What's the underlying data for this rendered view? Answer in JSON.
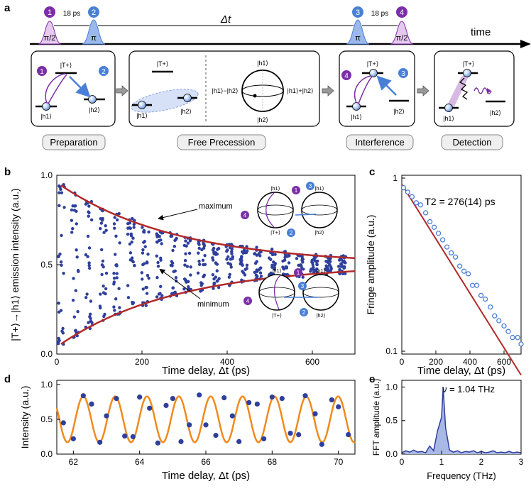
{
  "panel_a": {
    "label": "a",
    "time_label": "time",
    "delay_label": "Δt",
    "pulses": [
      {
        "num": "1",
        "name": "π/2"
      },
      {
        "num": "2",
        "name": "π"
      },
      {
        "num": "3",
        "name": "π"
      },
      {
        "num": "4",
        "name": "π/2"
      }
    ],
    "gap_label": "18 ps",
    "boxes": [
      "Preparation",
      "Free Precession",
      "Interference",
      "Detection"
    ],
    "state_T": "|T+⟩",
    "state_h1": "|h1⟩",
    "state_h2": "|h2⟩",
    "minus_label": "|h1⟩−|h2⟩",
    "plus_label": "|h1⟩+|h2⟩",
    "colors": {
      "purple": "#7b2fa6",
      "blue": "#4a7fd8",
      "red": "#b22a2a",
      "orange": "#f08a1c",
      "dots": "#2e3f9c"
    }
  },
  "panel_b": {
    "label": "b",
    "ylabel": "|T+⟩→|h1⟩ emission intensity (a.u.)",
    "xlabel": "Time delay, Δt (ps)",
    "maximum_label": "maximum",
    "minimum_label": "minimum",
    "bloch_nums": [
      "1",
      "2",
      "3",
      "4"
    ]
  },
  "panel_c": {
    "label": "c",
    "ylabel": "Fringe amplitude (a.u.)",
    "xlabel": "Time delay, Δt (ps)",
    "annotation": "T2 = 276(14) ps"
  },
  "panel_d": {
    "label": "d",
    "ylabel": "Intensity (a.u.)",
    "xlabel": "Time delay, Δt (ps)"
  },
  "panel_e": {
    "label": "e",
    "ylabel": "FFT amplitude (a.u.)",
    "xlabel": "Frequency (THz)",
    "annotation": "ν = 1.04 THz"
  },
  "chart_data": [
    {
      "type": "scatter",
      "panel": "b",
      "title": "",
      "xlabel": "Time delay, Δt (ps)",
      "ylabel": "|T+⟩→|h1⟩ emission intensity (a.u.)",
      "xlim": [
        0,
        700
      ],
      "ylim": [
        0,
        1
      ],
      "xticks": [
        0,
        200,
        400,
        600
      ],
      "yticks": [
        0.0,
        0.5,
        1.0
      ],
      "envelope": {
        "center": 0.5,
        "amplitude": 0.46,
        "T2": 276
      },
      "series": [
        {
          "name": "data",
          "sample_every_ps": 33,
          "points_per_group": 28
        }
      ]
    },
    {
      "type": "scatter",
      "panel": "c",
      "xlabel": "Time delay, Δt (ps)",
      "ylabel": "Fringe amplitude (a.u.)",
      "xlim": [
        0,
        700
      ],
      "ylim": [
        0.1,
        1
      ],
      "yscale": "log",
      "xticks": [
        0,
        200,
        400,
        600
      ],
      "yticks": [
        0.1,
        1
      ],
      "x": [
        10,
        35,
        60,
        85,
        110,
        140,
        165,
        190,
        215,
        240,
        265,
        290,
        315,
        340,
        365,
        390,
        415,
        440,
        465,
        490,
        520,
        545,
        570,
        600,
        625,
        650,
        680,
        700
      ],
      "y": [
        0.88,
        0.83,
        0.78,
        0.72,
        0.7,
        0.63,
        0.56,
        0.52,
        0.48,
        0.44,
        0.4,
        0.37,
        0.35,
        0.31,
        0.29,
        0.28,
        0.24,
        0.24,
        0.21,
        0.2,
        0.18,
        0.16,
        0.15,
        0.14,
        0.13,
        0.12,
        0.12,
        0.11
      ],
      "fit": {
        "A": 0.92,
        "T2": 276
      }
    },
    {
      "type": "line",
      "panel": "d",
      "xlabel": "Time delay, Δt (ps)",
      "ylabel": "Intensity (a.u.)",
      "xlim": [
        61.5,
        70.5
      ],
      "ylim": [
        0,
        1
      ],
      "xticks": [
        62,
        64,
        66,
        68,
        70
      ],
      "yticks": [
        0.0,
        0.5,
        1.0
      ],
      "fit": {
        "center": 0.5,
        "amplitude": 0.33,
        "frequency_THz": 1.04
      },
      "points_x": [
        61.7,
        62.0,
        62.3,
        62.55,
        62.8,
        63.0,
        63.3,
        63.55,
        63.8,
        64.0,
        64.3,
        64.55,
        64.8,
        65.0,
        65.25,
        65.5,
        65.8,
        66.0,
        66.3,
        66.55,
        66.8,
        67.0,
        67.3,
        67.55,
        67.75,
        68.0,
        68.3,
        68.55,
        68.8,
        69.0,
        69.3,
        69.5,
        69.8,
        70.0,
        70.3
      ],
      "points_y": [
        0.45,
        0.22,
        0.84,
        0.72,
        0.17,
        0.55,
        0.8,
        0.26,
        0.25,
        0.82,
        0.66,
        0.16,
        0.7,
        0.8,
        0.18,
        0.42,
        0.85,
        0.42,
        0.27,
        0.81,
        0.55,
        0.18,
        0.74,
        0.72,
        0.22,
        0.82,
        0.8,
        0.3,
        0.28,
        0.84,
        0.58,
        0.14,
        0.78,
        0.68,
        0.28
      ]
    },
    {
      "type": "area",
      "panel": "e",
      "xlabel": "Frequency (THz)",
      "ylabel": "FFT amplitude (a.u.)",
      "xlim": [
        0,
        3
      ],
      "ylim": [
        0,
        1.1
      ],
      "xticks": [
        0,
        1,
        2,
        3
      ],
      "yticks": [
        0.0,
        0.5,
        1.0
      ],
      "x": [
        0,
        0.1,
        0.2,
        0.3,
        0.4,
        0.5,
        0.6,
        0.7,
        0.8,
        0.9,
        1.0,
        1.04,
        1.1,
        1.2,
        1.3,
        1.4,
        1.5,
        1.6,
        1.7,
        1.8,
        1.9,
        2.0,
        2.1,
        2.2,
        2.3,
        2.4,
        2.5,
        2.6,
        2.7,
        2.8,
        2.9,
        3.0
      ],
      "y": [
        0.02,
        0.05,
        0.03,
        0.06,
        0.03,
        0.04,
        0.02,
        0.12,
        0.05,
        0.35,
        0.55,
        1.0,
        0.4,
        0.06,
        0.03,
        0.05,
        0.02,
        0.04,
        0.03,
        0.05,
        0.02,
        0.04,
        0.02,
        0.03,
        0.05,
        0.02,
        0.03,
        0.02,
        0.04,
        0.02,
        0.03,
        0.02
      ]
    }
  ]
}
